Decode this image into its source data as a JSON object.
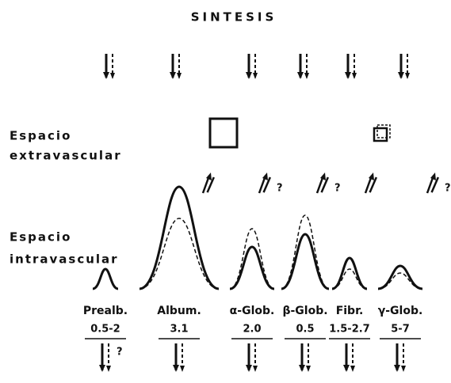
{
  "title": "SINTESIS",
  "extravascular": {
    "line1": "Espacio",
    "line2": "extravascular"
  },
  "intravascular": {
    "line1": "Espacio",
    "line2": "intravascular"
  },
  "columns": [
    {
      "label": "Prealb.",
      "range": "0.5-2",
      "excretion_note": "?"
    },
    {
      "label": "Album.",
      "range": "3.1"
    },
    {
      "label": "α-Glob.",
      "range": "2.0",
      "exchange_note": "?"
    },
    {
      "label": "β-Glob.",
      "range": "0.5",
      "exchange_note": "?"
    },
    {
      "label": "Fibr.",
      "range": "1.5-2.7"
    },
    {
      "label": "γ-Glob.",
      "range": "5-7",
      "exchange_note": "?"
    }
  ]
}
